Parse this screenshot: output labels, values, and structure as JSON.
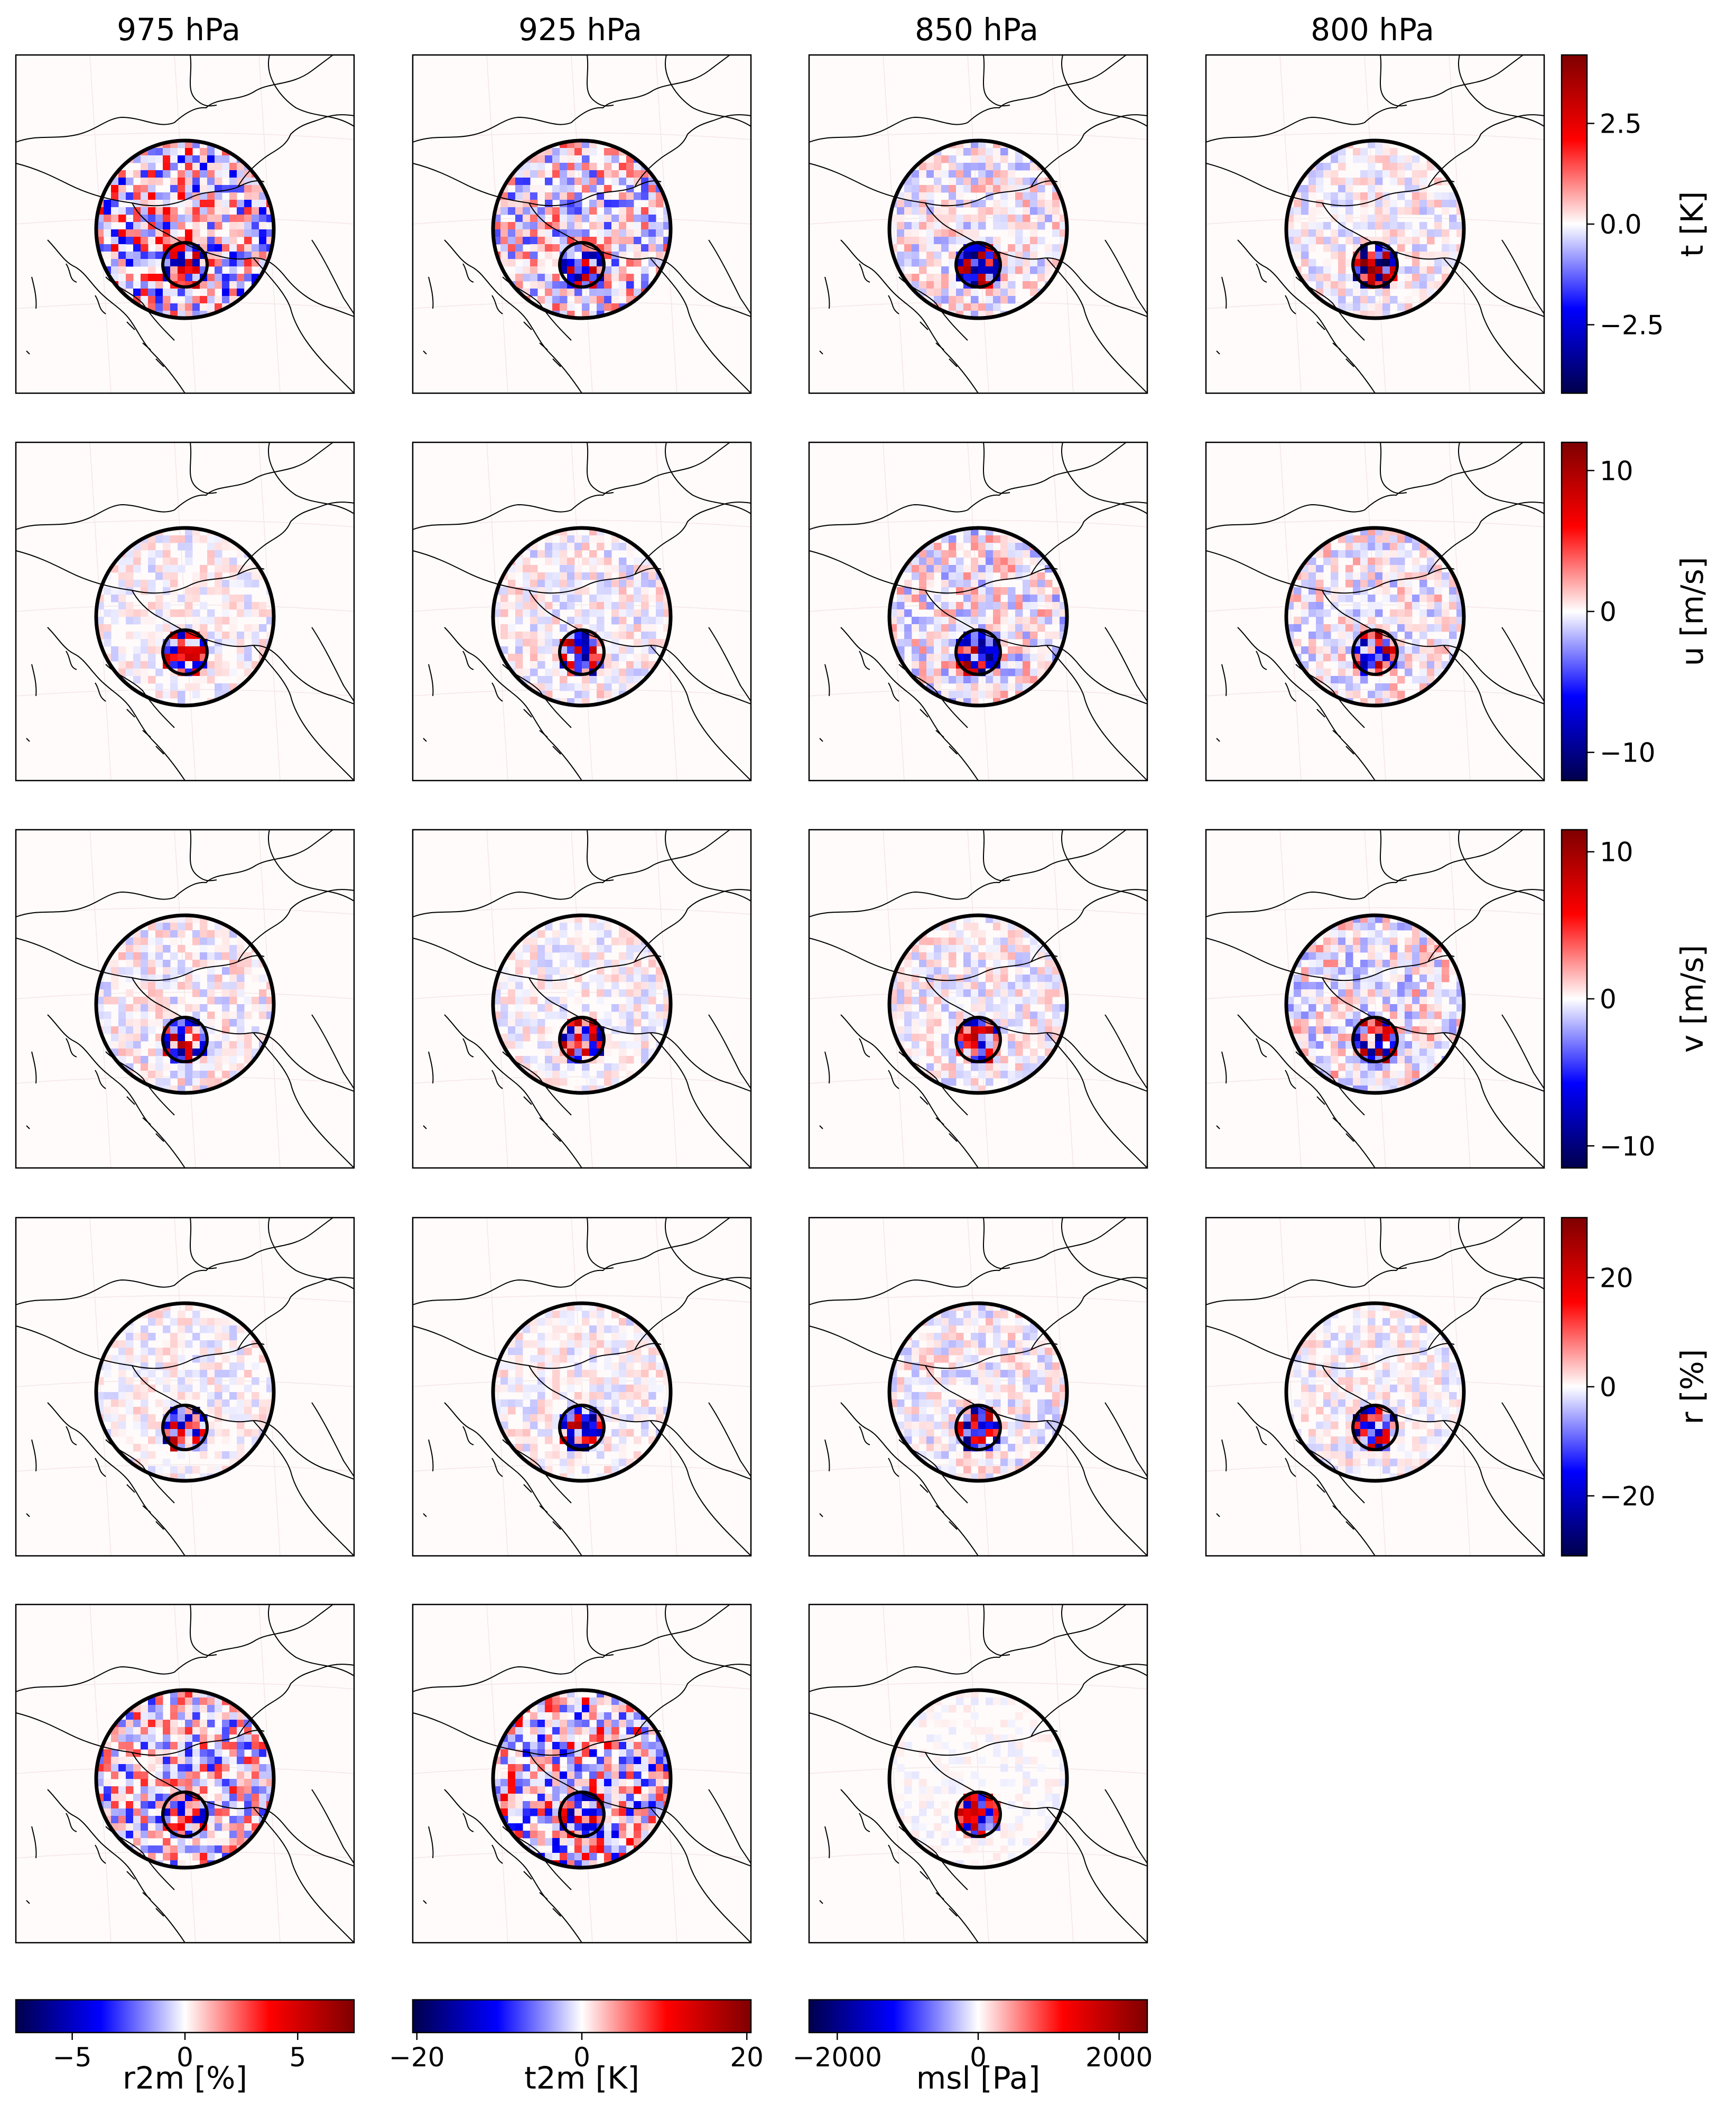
{
  "figure": {
    "column_titles": [
      "975 hPa",
      "925 hPa",
      "850 hPa",
      "800 hPa"
    ]
  },
  "colormap": {
    "name": "seismic",
    "stops": [
      "#00004c",
      "#0000ff",
      "#ffffff",
      "#ff0000",
      "#7f0000"
    ]
  },
  "chart_data": [
    {
      "type": "heatmap",
      "variable": "t",
      "label": "t [K]",
      "levels": [
        "975 hPa",
        "925 hPa",
        "850 hPa",
        "800 hPa"
      ],
      "colorbar": {
        "orientation": "vertical",
        "range": [
          -4.2,
          4.2
        ],
        "ticks": [
          -2.5,
          0.0,
          2.5
        ],
        "tick_labels": [
          "−2.5",
          "0.0",
          "2.5"
        ]
      },
      "inner_amplitude": [
        0.8,
        0.8,
        0.9,
        1.0
      ],
      "outer_amplitude": [
        0.55,
        0.4,
        0.2,
        0.15
      ]
    },
    {
      "type": "heatmap",
      "variable": "u",
      "label": "u [m/s]",
      "levels": [
        "975 hPa",
        "925 hPa",
        "850 hPa",
        "800 hPa"
      ],
      "colorbar": {
        "orientation": "vertical",
        "range": [
          -12,
          12
        ],
        "ticks": [
          -10,
          0,
          10
        ],
        "tick_labels": [
          "−10",
          "0",
          "10"
        ]
      },
      "inner_amplitude": [
        0.75,
        0.8,
        0.9,
        0.85
      ],
      "outer_amplitude": [
        0.12,
        0.15,
        0.25,
        0.2
      ]
    },
    {
      "type": "heatmap",
      "variable": "v",
      "label": "v [m/s]",
      "levels": [
        "975 hPa",
        "925 hPa",
        "850 hPa",
        "800 hPa"
      ],
      "colorbar": {
        "orientation": "vertical",
        "range": [
          -11.5,
          11.5
        ],
        "ticks": [
          -10,
          0,
          10
        ],
        "tick_labels": [
          "−10",
          "0",
          "10"
        ]
      },
      "inner_amplitude": [
        0.8,
        0.8,
        0.8,
        0.85
      ],
      "outer_amplitude": [
        0.15,
        0.12,
        0.15,
        0.25
      ]
    },
    {
      "type": "heatmap",
      "variable": "r",
      "label": "r [%]",
      "levels": [
        "975 hPa",
        "925 hPa",
        "850 hPa",
        "800 hPa"
      ],
      "colorbar": {
        "orientation": "vertical",
        "range": [
          -31,
          31
        ],
        "ticks": [
          -20,
          0,
          20
        ],
        "tick_labels": [
          "−20",
          "0",
          "20"
        ]
      },
      "inner_amplitude": [
        0.85,
        0.85,
        0.85,
        0.85
      ],
      "outer_amplitude": [
        0.12,
        0.12,
        0.15,
        0.12
      ]
    },
    {
      "type": "heatmap",
      "variable": "r2m",
      "label": "r2m [%]",
      "colorbar": {
        "orientation": "horizontal",
        "range": [
          -7.5,
          7.5
        ],
        "ticks": [
          -5,
          0,
          5
        ],
        "tick_labels": [
          "−5",
          "0",
          "5"
        ]
      },
      "inner_amplitude": 0.7,
      "outer_amplitude": 0.45
    },
    {
      "type": "heatmap",
      "variable": "t2m",
      "label": "t2m [K]",
      "colorbar": {
        "orientation": "horizontal",
        "range": [
          -20.5,
          20.5
        ],
        "ticks": [
          -20,
          0,
          20
        ],
        "tick_labels": [
          "−20",
          "0",
          "20"
        ]
      },
      "inner_amplitude": 0.75,
      "outer_amplitude": 0.55
    },
    {
      "type": "heatmap",
      "variable": "msl",
      "label": "msl [Pa]",
      "colorbar": {
        "orientation": "horizontal",
        "range": [
          -2400,
          2400
        ],
        "ticks": [
          -2000,
          0,
          2000
        ],
        "tick_labels": [
          "−2000",
          "0",
          "2000"
        ]
      },
      "inner_amplitude": 0.75,
      "outer_amplitude": 0.05
    }
  ]
}
